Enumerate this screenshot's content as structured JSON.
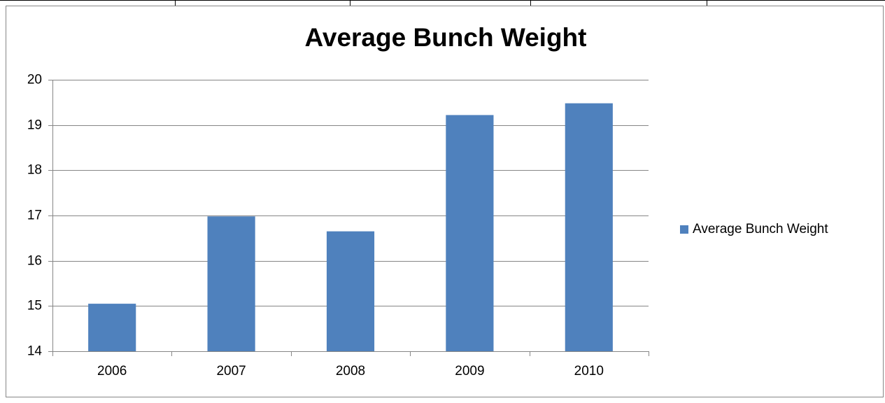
{
  "chart_data": {
    "type": "bar",
    "title": "Average Bunch Weight",
    "categories": [
      "2006",
      "2007",
      "2008",
      "2009",
      "2010"
    ],
    "series": [
      {
        "name": "Average Bunch Weight",
        "color": "#4f81bd",
        "values": [
          15.05,
          16.98,
          16.65,
          19.22,
          19.48
        ]
      }
    ],
    "ylim": [
      14,
      20
    ],
    "yticks": [
      14,
      15,
      16,
      17,
      18,
      19,
      20
    ],
    "grid": true,
    "legend": "right"
  }
}
